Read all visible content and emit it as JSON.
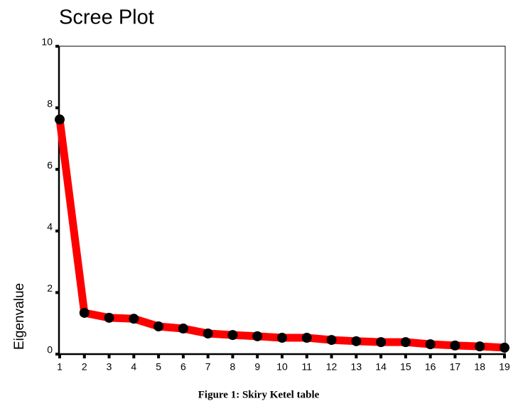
{
  "chart_data": {
    "type": "line",
    "title": "Scree Plot",
    "y_label": "Eigenvalue",
    "caption": "Figure 1: Skiry Ketel table",
    "x": [
      1,
      2,
      3,
      4,
      5,
      6,
      7,
      8,
      9,
      10,
      11,
      12,
      13,
      14,
      15,
      16,
      17,
      18,
      19
    ],
    "values": [
      7.62,
      1.34,
      1.18,
      1.15,
      0.9,
      0.83,
      0.67,
      0.62,
      0.58,
      0.53,
      0.53,
      0.46,
      0.42,
      0.39,
      0.39,
      0.32,
      0.28,
      0.25,
      0.21
    ],
    "color": "#ff0000",
    "marker_color": "#000000",
    "xlim": [
      1,
      19
    ],
    "xticks": [
      1,
      2,
      3,
      4,
      5,
      6,
      7,
      8,
      9,
      10,
      11,
      12,
      13,
      14,
      15,
      16,
      17,
      18,
      19
    ],
    "ylim": [
      0,
      10
    ],
    "yticks": [
      0,
      2,
      4,
      6,
      8,
      10
    ],
    "grid": false
  }
}
